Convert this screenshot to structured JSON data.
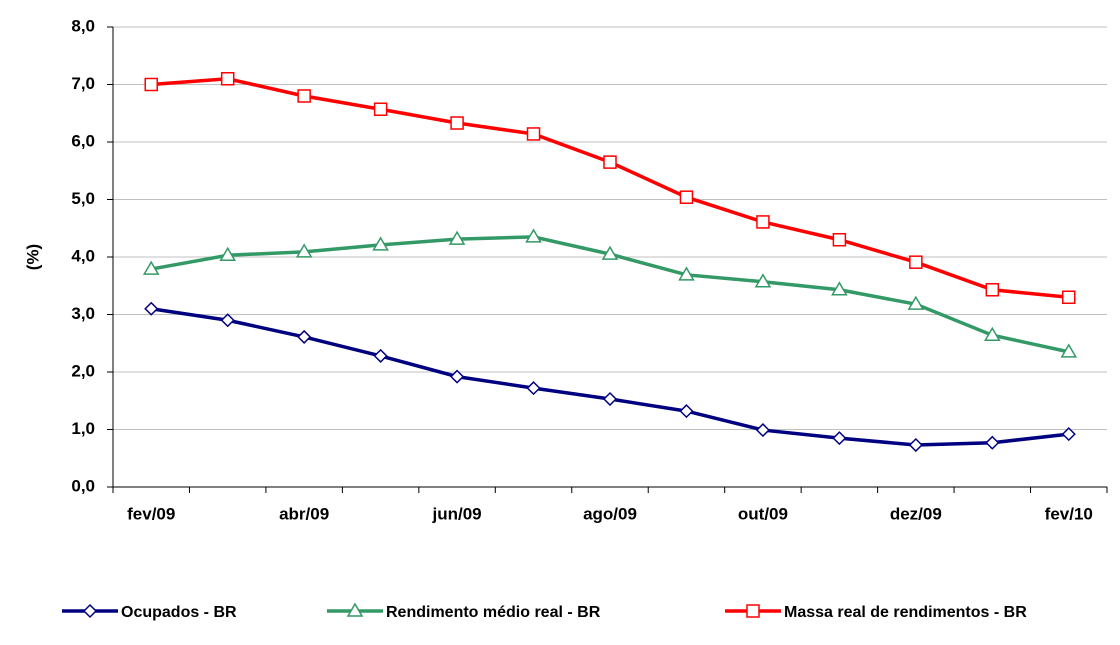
{
  "chart_data": {
    "type": "line",
    "ylabel": "(%)",
    "categories": [
      "fev/09",
      null,
      "abr/09",
      null,
      "jun/09",
      null,
      "ago/09",
      null,
      "out/09",
      null,
      "dez/09",
      null,
      "fev/10"
    ],
    "series": [
      {
        "name": "Ocupados - BR",
        "color": "#000080",
        "marker": "diamond",
        "values": [
          3.1,
          2.9,
          2.61,
          2.28,
          1.92,
          1.72,
          1.53,
          1.32,
          0.99,
          0.85,
          0.73,
          0.77,
          0.92
        ]
      },
      {
        "name": "Rendimento médio real - BR",
        "color": "#339966",
        "marker": "triangle",
        "values": [
          3.79,
          4.03,
          4.09,
          4.21,
          4.31,
          4.35,
          4.05,
          3.69,
          3.57,
          3.43,
          3.18,
          2.64,
          2.35
        ]
      },
      {
        "name": "Massa real de rendimentos - BR",
        "color": "#ff0000",
        "marker": "square",
        "values": [
          7.0,
          7.1,
          6.8,
          6.57,
          6.33,
          6.14,
          5.65,
          5.04,
          4.61,
          4.3,
          3.91,
          3.43,
          3.3
        ]
      }
    ],
    "ylim": [
      0,
      8
    ],
    "yticks": [
      {
        "value": 0,
        "label": "0,0"
      },
      {
        "value": 1,
        "label": "1,0"
      },
      {
        "value": 2,
        "label": "2,0"
      },
      {
        "value": 3,
        "label": "3,0"
      },
      {
        "value": 4,
        "label": "4,0"
      },
      {
        "value": 5,
        "label": "5,0"
      },
      {
        "value": 6,
        "label": "6,0"
      },
      {
        "value": 7,
        "label": "7,0"
      },
      {
        "value": 8,
        "label": "8,0"
      }
    ],
    "grid": true,
    "legend": "bottom"
  }
}
